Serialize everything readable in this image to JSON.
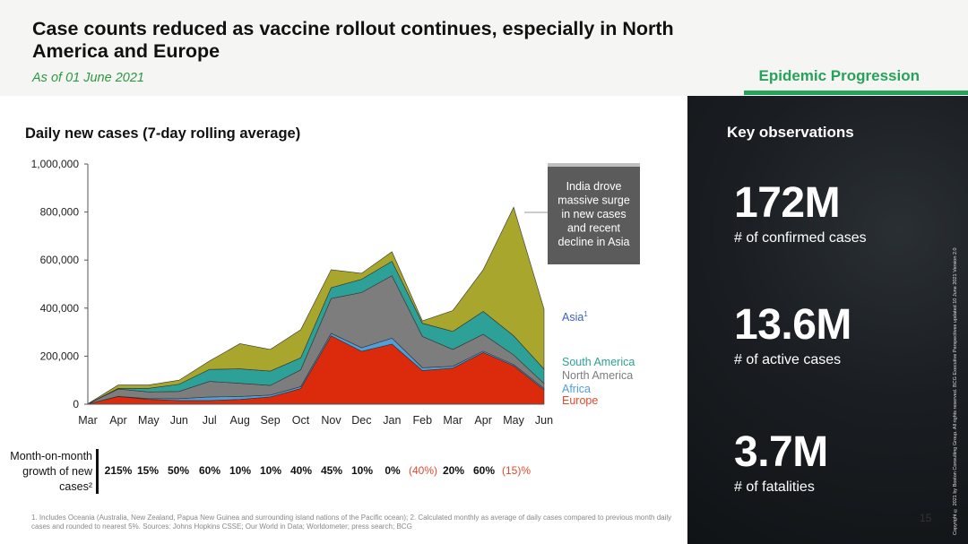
{
  "header": {
    "title": "Case counts reduced as vaccine rollout continues, especially in North America and Europe",
    "subtitle": "As of 01 June 2021",
    "section_label": "Epidemic Progression"
  },
  "chart_data": {
    "type": "area",
    "title": "Daily new cases (7-day rolling average)",
    "stacked": true,
    "categories": [
      "Mar",
      "Apr",
      "May",
      "Jun",
      "Jul",
      "Aug",
      "Sep",
      "Oct",
      "Nov",
      "Dec",
      "Jan",
      "Feb",
      "Mar",
      "Apr",
      "May",
      "Jun"
    ],
    "y_tick_labels": [
      "0",
      "200,000",
      "400,000",
      "600,000",
      "800,000",
      "1,000,000"
    ],
    "ylim": [
      0,
      1000000
    ],
    "series": [
      {
        "name": "Europe",
        "color": "#dc2a0c",
        "values": [
          1000,
          32000,
          20000,
          15000,
          15000,
          20000,
          30000,
          65000,
          285000,
          220000,
          250000,
          140000,
          150000,
          215000,
          160000,
          60000
        ]
      },
      {
        "name": "Africa",
        "color": "#4f9fd8",
        "values": [
          0,
          1000,
          3000,
          8000,
          15000,
          12000,
          8000,
          8000,
          10000,
          15000,
          25000,
          12000,
          8000,
          6000,
          5000,
          6000
        ]
      },
      {
        "name": "North America",
        "color": "#7d7d7d",
        "values": [
          200,
          30000,
          28000,
          30000,
          65000,
          55000,
          40000,
          70000,
          145000,
          230000,
          260000,
          130000,
          70000,
          70000,
          40000,
          20000
        ]
      },
      {
        "name": "South America",
        "color": "#2da197",
        "values": [
          0,
          3000,
          15000,
          30000,
          50000,
          60000,
          60000,
          50000,
          45000,
          55000,
          60000,
          55000,
          75000,
          95000,
          80000,
          60000
        ]
      },
      {
        "name": "Asia",
        "color": "#a8a62c",
        "values": [
          800,
          14000,
          14000,
          17000,
          35000,
          105000,
          90000,
          117000,
          75000,
          25000,
          40000,
          10000,
          87000,
          174000,
          535000,
          250000
        ]
      }
    ],
    "legend": [
      {
        "label": "Asia",
        "sup": "1",
        "color": "#3a63b8"
      },
      {
        "label": "South America",
        "sup": "",
        "color": "#2da197"
      },
      {
        "label": "North America",
        "sup": "",
        "color": "#7d7d7d"
      },
      {
        "label": "Africa",
        "sup": "",
        "color": "#4f9fd8"
      },
      {
        "label": "Europe",
        "sup": "",
        "color": "#e2482c"
      }
    ],
    "annotation": "India drove massive surge in new cases and recent decline in Asia"
  },
  "growth": {
    "label": "Month-on-month growth of new cases²",
    "values": [
      "215%",
      "15%",
      "50%",
      "60%",
      "10%",
      "10%",
      "40%",
      "45%",
      "10%",
      "0%",
      "(40%)",
      "20%",
      "60%",
      "(15)%"
    ],
    "negative_color": "#e2482c"
  },
  "observations": {
    "title": "Key observations",
    "stats": [
      {
        "value": "172M",
        "label": "# of confirmed cases"
      },
      {
        "value": "13.6M",
        "label": "# of active cases"
      },
      {
        "value": "3.7M",
        "label": "# of fatalities"
      }
    ]
  },
  "copyright": "Copyright © 2021 by Boston Consulting Group. All rights reserved. BCG Executive Perspectives updated 10 June 2021 Version 2.0",
  "page_number": "15",
  "footnote": "1. Includes Oceania (Australia, New Zealand, Papua New Guinea and surrounding island nations of the Pacific ocean); 2. Calculated monthly as average of daily cases compared to previous month daily cases and rounded to nearest 5%. Sources: Johns Hopkins CSSE; Our World in Data; Worldometer; press search; BCG"
}
